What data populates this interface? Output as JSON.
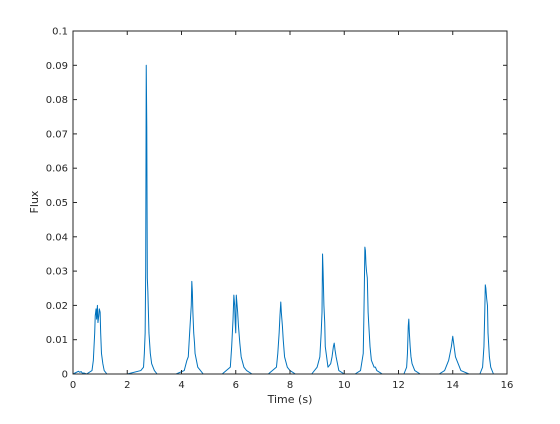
{
  "chart_data": {
    "type": "line",
    "title": "",
    "xlabel": "Time (s)",
    "ylabel": "Flux",
    "xlim": [
      0,
      16
    ],
    "ylim": [
      0,
      0.1
    ],
    "grid": false,
    "legend": "none",
    "line_color": "#0072BD",
    "x_ticks": [
      0,
      2,
      4,
      6,
      8,
      10,
      12,
      14,
      16
    ],
    "x_tick_labels": [
      "0",
      "2",
      "4",
      "6",
      "8",
      "10",
      "12",
      "14",
      "16"
    ],
    "y_ticks": [
      0,
      0.01,
      0.02,
      0.03,
      0.04,
      0.05,
      0.06,
      0.07,
      0.08,
      0.09,
      0.1
    ],
    "y_tick_labels": [
      "0",
      "0.01",
      "0.02",
      "0.03",
      "0.04",
      "0.05",
      "0.06",
      "0.07",
      "0.08",
      "0.09",
      "0.1"
    ],
    "series": [
      {
        "x": [
          0.0,
          0.2,
          0.25,
          0.3,
          0.35,
          0.4,
          0.5,
          0.7,
          0.75,
          0.8,
          0.82,
          0.85,
          0.87,
          0.9,
          0.92,
          0.95,
          0.97,
          1.0,
          1.02,
          1.05,
          1.1,
          1.15,
          1.25,
          1.5,
          2.0,
          2.5,
          2.6,
          2.63,
          2.66,
          2.68,
          2.7,
          2.72,
          2.74,
          2.76,
          2.78,
          2.8,
          2.85,
          2.9,
          3.0,
          3.1,
          3.2,
          3.4,
          3.8,
          4.1,
          4.2,
          4.25,
          4.3,
          4.33,
          4.36,
          4.38,
          4.4,
          4.42,
          4.45,
          4.48,
          4.5,
          4.55,
          4.6,
          4.7,
          4.8,
          5.0,
          5.5,
          5.8,
          5.85,
          5.9,
          5.93,
          5.96,
          5.98,
          6.0,
          6.02,
          6.05,
          6.07,
          6.1,
          6.15,
          6.2,
          6.3,
          6.4,
          6.6,
          7.2,
          7.5,
          7.55,
          7.6,
          7.63,
          7.66,
          7.68,
          7.7,
          7.72,
          7.75,
          7.8,
          7.9,
          8.0,
          8.2,
          8.8,
          9.0,
          9.1,
          9.15,
          9.18,
          9.2,
          9.22,
          9.25,
          9.28,
          9.3,
          9.35,
          9.4,
          9.5,
          9.55,
          9.6,
          9.63,
          9.66,
          9.7,
          9.75,
          9.8,
          10.0,
          10.4,
          10.6,
          10.7,
          10.72,
          10.74,
          10.76,
          10.78,
          10.8,
          10.82,
          10.85,
          10.88,
          10.9,
          10.95,
          11.0,
          11.05,
          11.1,
          11.15,
          11.2,
          11.4,
          11.8,
          12.2,
          12.3,
          12.33,
          12.36,
          12.38,
          12.4,
          12.43,
          12.46,
          12.5,
          12.6,
          12.8,
          13.5,
          13.7,
          13.8,
          13.85,
          13.9,
          13.95,
          14.0,
          14.05,
          14.1,
          14.2,
          14.3,
          14.6,
          15.0,
          15.1,
          15.15,
          15.18,
          15.2,
          15.22,
          15.25,
          15.28,
          15.3,
          15.35,
          15.4,
          15.5,
          16.0
        ],
        "y": [
          0,
          0.0008,
          0.0005,
          0.0007,
          0.0002,
          0.0003,
          0,
          0.001,
          0.004,
          0.012,
          0.017,
          0.019,
          0.016,
          0.02,
          0.015,
          0.017,
          0.019,
          0.018,
          0.012,
          0.006,
          0.003,
          0.001,
          0,
          0,
          0,
          0.001,
          0.002,
          0.006,
          0.012,
          0.03,
          0.09,
          0.072,
          0.028,
          0.024,
          0.018,
          0.012,
          0.006,
          0.003,
          0.001,
          0,
          0,
          0,
          0,
          0.001,
          0.004,
          0.005,
          0.012,
          0.016,
          0.02,
          0.027,
          0.024,
          0.018,
          0.012,
          0.009,
          0.006,
          0.004,
          0.002,
          0.001,
          0,
          0,
          0,
          0.002,
          0.008,
          0.016,
          0.023,
          0.02,
          0.015,
          0.012,
          0.023,
          0.02,
          0.018,
          0.014,
          0.009,
          0.005,
          0.002,
          0.001,
          0,
          0,
          0.002,
          0.006,
          0.012,
          0.017,
          0.021,
          0.018,
          0.016,
          0.014,
          0.01,
          0.005,
          0.002,
          0.001,
          0,
          0,
          0.002,
          0.005,
          0.012,
          0.018,
          0.035,
          0.03,
          0.02,
          0.015,
          0.008,
          0.005,
          0.002,
          0.003,
          0.005,
          0.008,
          0.009,
          0.007,
          0.005,
          0.003,
          0.001,
          0,
          0,
          0.001,
          0.006,
          0.015,
          0.025,
          0.037,
          0.036,
          0.032,
          0.03,
          0.028,
          0.018,
          0.015,
          0.008,
          0.004,
          0.003,
          0.002,
          0.002,
          0.001,
          0,
          0,
          0,
          0.002,
          0.006,
          0.014,
          0.016,
          0.012,
          0.008,
          0.005,
          0.003,
          0.001,
          0,
          0,
          0.001,
          0.003,
          0.004,
          0.006,
          0.008,
          0.011,
          0.008,
          0.005,
          0.003,
          0.001,
          0,
          0,
          0.002,
          0.008,
          0.018,
          0.026,
          0.025,
          0.022,
          0.02,
          0.012,
          0.005,
          0.002,
          0,
          0
        ]
      }
    ]
  }
}
